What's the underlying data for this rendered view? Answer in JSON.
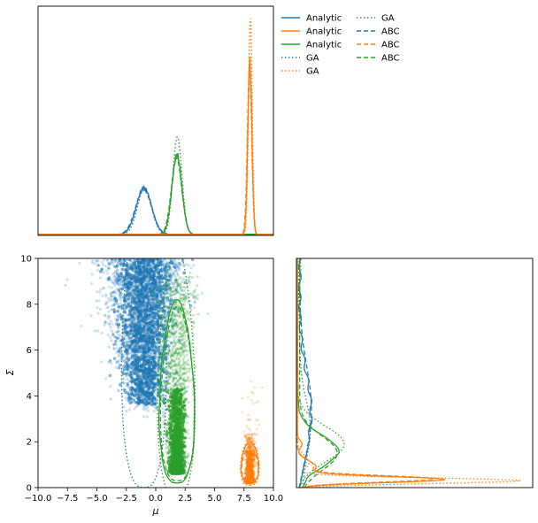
{
  "colors": {
    "blue": "#1f77b4",
    "orange": "#ff7f0e",
    "green": "#2ca02c"
  },
  "legend": {
    "placement": "top-right",
    "entries": [
      {
        "label": "Analytic",
        "color": "#1f77b4",
        "style": "solid"
      },
      {
        "label": "Analytic",
        "color": "#ff7f0e",
        "style": "solid"
      },
      {
        "label": "Analytic",
        "color": "#2ca02c",
        "style": "solid"
      },
      {
        "label": "GA",
        "color": "#1f77b4",
        "style": "dotted"
      },
      {
        "label": "GA",
        "color": "#ff7f0e",
        "style": "dotted"
      },
      {
        "label": "GA",
        "color": "#2ca02c",
        "style": "dotted"
      },
      {
        "label": "ABC",
        "color": "#1f77b4",
        "style": "dashed"
      },
      {
        "label": "ABC",
        "color": "#ff7f0e",
        "style": "dashed"
      },
      {
        "label": "ABC",
        "color": "#2ca02c",
        "style": "dashed"
      }
    ]
  },
  "chart_data": [
    {
      "panel": "mu-marginal",
      "type": "line",
      "title": "",
      "xlabel": "",
      "ylabel": "",
      "xlim": [
        -10,
        10
      ],
      "show_ticks": false,
      "series": [
        {
          "color": "#1f77b4",
          "center": -1.0,
          "sd": 0.65,
          "height": 0.205,
          "methods": [
            "Analytic",
            "GA",
            "ABC"
          ]
        },
        {
          "color": "#2ca02c",
          "center": 1.8,
          "sd": 0.42,
          "height": 0.35,
          "ga_height": 0.43,
          "methods": [
            "Analytic",
            "GA",
            "ABC"
          ]
        },
        {
          "color": "#ff7f0e",
          "center": 8.0,
          "sd": 0.17,
          "height": 0.77,
          "ga_height": 0.96,
          "methods": [
            "Analytic",
            "GA",
            "ABC"
          ]
        }
      ]
    },
    {
      "panel": "joint",
      "type": "scatter",
      "title": "",
      "xlabel": "μ",
      "ylabel": "Σ",
      "xlim": [
        -10,
        10
      ],
      "ylim": [
        0,
        10
      ],
      "xticks": [
        "−10.0",
        "−7.5",
        "−5.0",
        "−2.5",
        "0.0",
        "2.5",
        "5.0",
        "7.5",
        "10.0"
      ],
      "xtick_values": [
        -10,
        -7.5,
        -5,
        -2.5,
        0,
        2.5,
        5,
        7.5,
        10
      ],
      "yticks": [
        "0",
        "2",
        "4",
        "6",
        "8",
        "10"
      ],
      "ytick_values": [
        0,
        2,
        4,
        6,
        8,
        10
      ],
      "clusters": [
        {
          "color": "#1f77b4",
          "mu_center": -1.0,
          "sigma_min": 3.0,
          "sigma_max": 10.0
        },
        {
          "color": "#2ca02c",
          "mu_center": 1.8,
          "sigma_min": 0.6,
          "sigma_max": 9.0
        },
        {
          "color": "#ff7f0e",
          "mu_center": 8.0,
          "sigma_min": 0.2,
          "sigma_max": 2.2
        }
      ],
      "contours": [
        {
          "color": "#1f77b4",
          "mu_center": -1.0,
          "sigma_min": 0.0,
          "sigma_max": 10.0
        },
        {
          "color": "#2ca02c",
          "mu_center": 1.8,
          "sigma_min": 0.2,
          "sigma_max": 8.2
        },
        {
          "color": "#ff7f0e",
          "mu_center": 8.0,
          "sigma_min": 0.2,
          "sigma_max": 2.0
        }
      ]
    },
    {
      "panel": "sigma-marginal",
      "type": "line",
      "title": "",
      "xlabel": "",
      "ylabel": "",
      "ylim": [
        0,
        10
      ],
      "show_ticks": false,
      "series": [
        {
          "color": "#1f77b4",
          "shape": "broad-decay",
          "methods": [
            "Analytic",
            "GA",
            "ABC"
          ]
        },
        {
          "color": "#2ca02c",
          "peak_sigma": 1.9,
          "methods": [
            "Analytic",
            "GA",
            "ABC"
          ]
        },
        {
          "color": "#ff7f0e",
          "peak_sigma": 0.4,
          "methods": [
            "Analytic",
            "GA",
            "ABC"
          ]
        }
      ]
    }
  ]
}
